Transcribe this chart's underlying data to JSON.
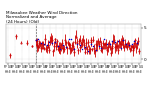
{
  "title": "Milwaukee Weather Wind Direction\nNormalized and Average\n(24 Hours) (Old)",
  "title_fontsize": 3.0,
  "background_color": "#ffffff",
  "plot_bg_color": "#ffffff",
  "grid_color": "#bbbbbb",
  "bar_color": "#cc0000",
  "avg_color": "#0000cc",
  "separator_color": "#444444",
  "ylim": [
    -0.5,
    5.5
  ],
  "yticks": [
    0,
    5
  ],
  "n_points": 144,
  "n_sparse": 30,
  "seed": 7
}
